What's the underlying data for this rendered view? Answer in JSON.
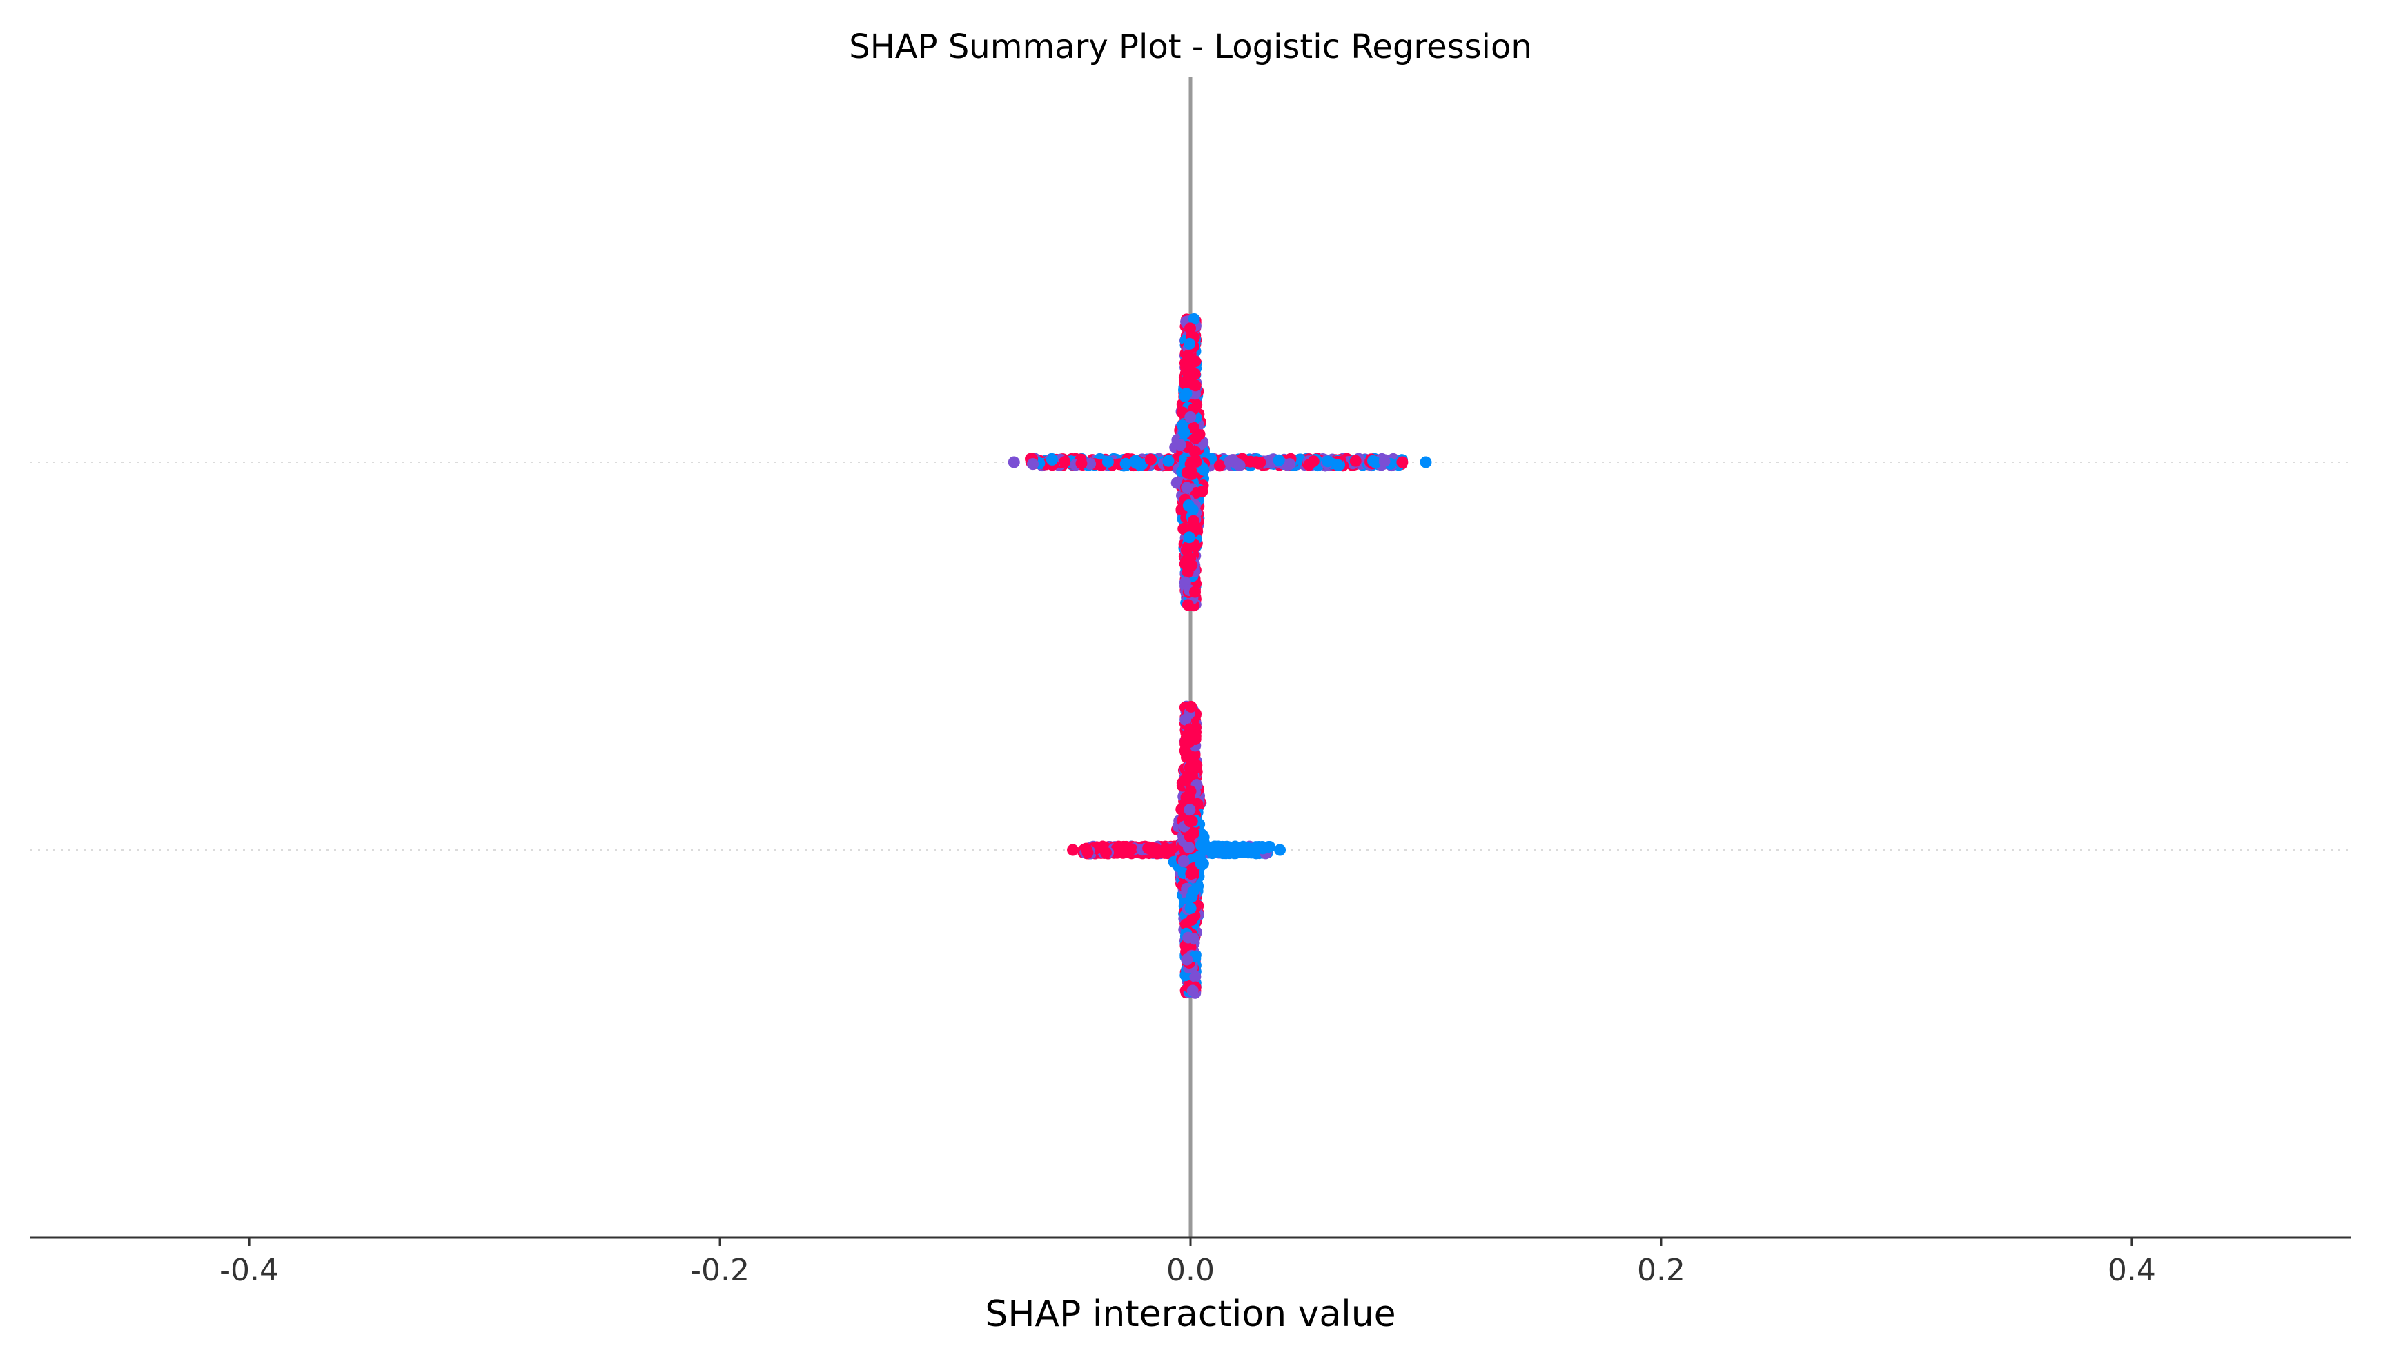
{
  "chart_data": {
    "type": "scatter",
    "title": "SHAP Summary Plot - Logistic Regression",
    "xlabel": "SHAP interaction value",
    "ylabel": "",
    "xlim": [
      -0.493,
      0.493
    ],
    "xticks": [
      -0.4,
      -0.2,
      0.0,
      0.2,
      0.4
    ],
    "xtick_labels": [
      "-0.4",
      "-0.2",
      "0.0",
      "0.2",
      "0.4"
    ],
    "grid": false,
    "zero_line": true,
    "colors": {
      "high": "#ff0051",
      "mid": "#7b4fd4",
      "low": "#008bfb",
      "zero_line": "#999999",
      "row_grid": "#cccccc",
      "axis": "#333333"
    },
    "rows": [
      {
        "index": 0,
        "horizontal_range": [
          -0.075,
          0.1
        ],
        "horizontal_core": [
          -0.068,
          0.09
        ],
        "vertical_extent": 0.46,
        "high_side": "mixed",
        "outliers": [
          {
            "x": -0.075,
            "color": "mid"
          },
          {
            "x": 0.1,
            "color": "low"
          },
          {
            "x": 0.09,
            "color": "high"
          }
        ]
      },
      {
        "index": 1,
        "horizontal_range": [
          -0.05,
          0.038
        ],
        "horizontal_core": [
          -0.046,
          0.034
        ],
        "vertical_extent": 0.46,
        "high_side": "negative",
        "outliers": [
          {
            "x": -0.05,
            "color": "high"
          },
          {
            "x": 0.038,
            "color": "low"
          }
        ]
      }
    ]
  }
}
